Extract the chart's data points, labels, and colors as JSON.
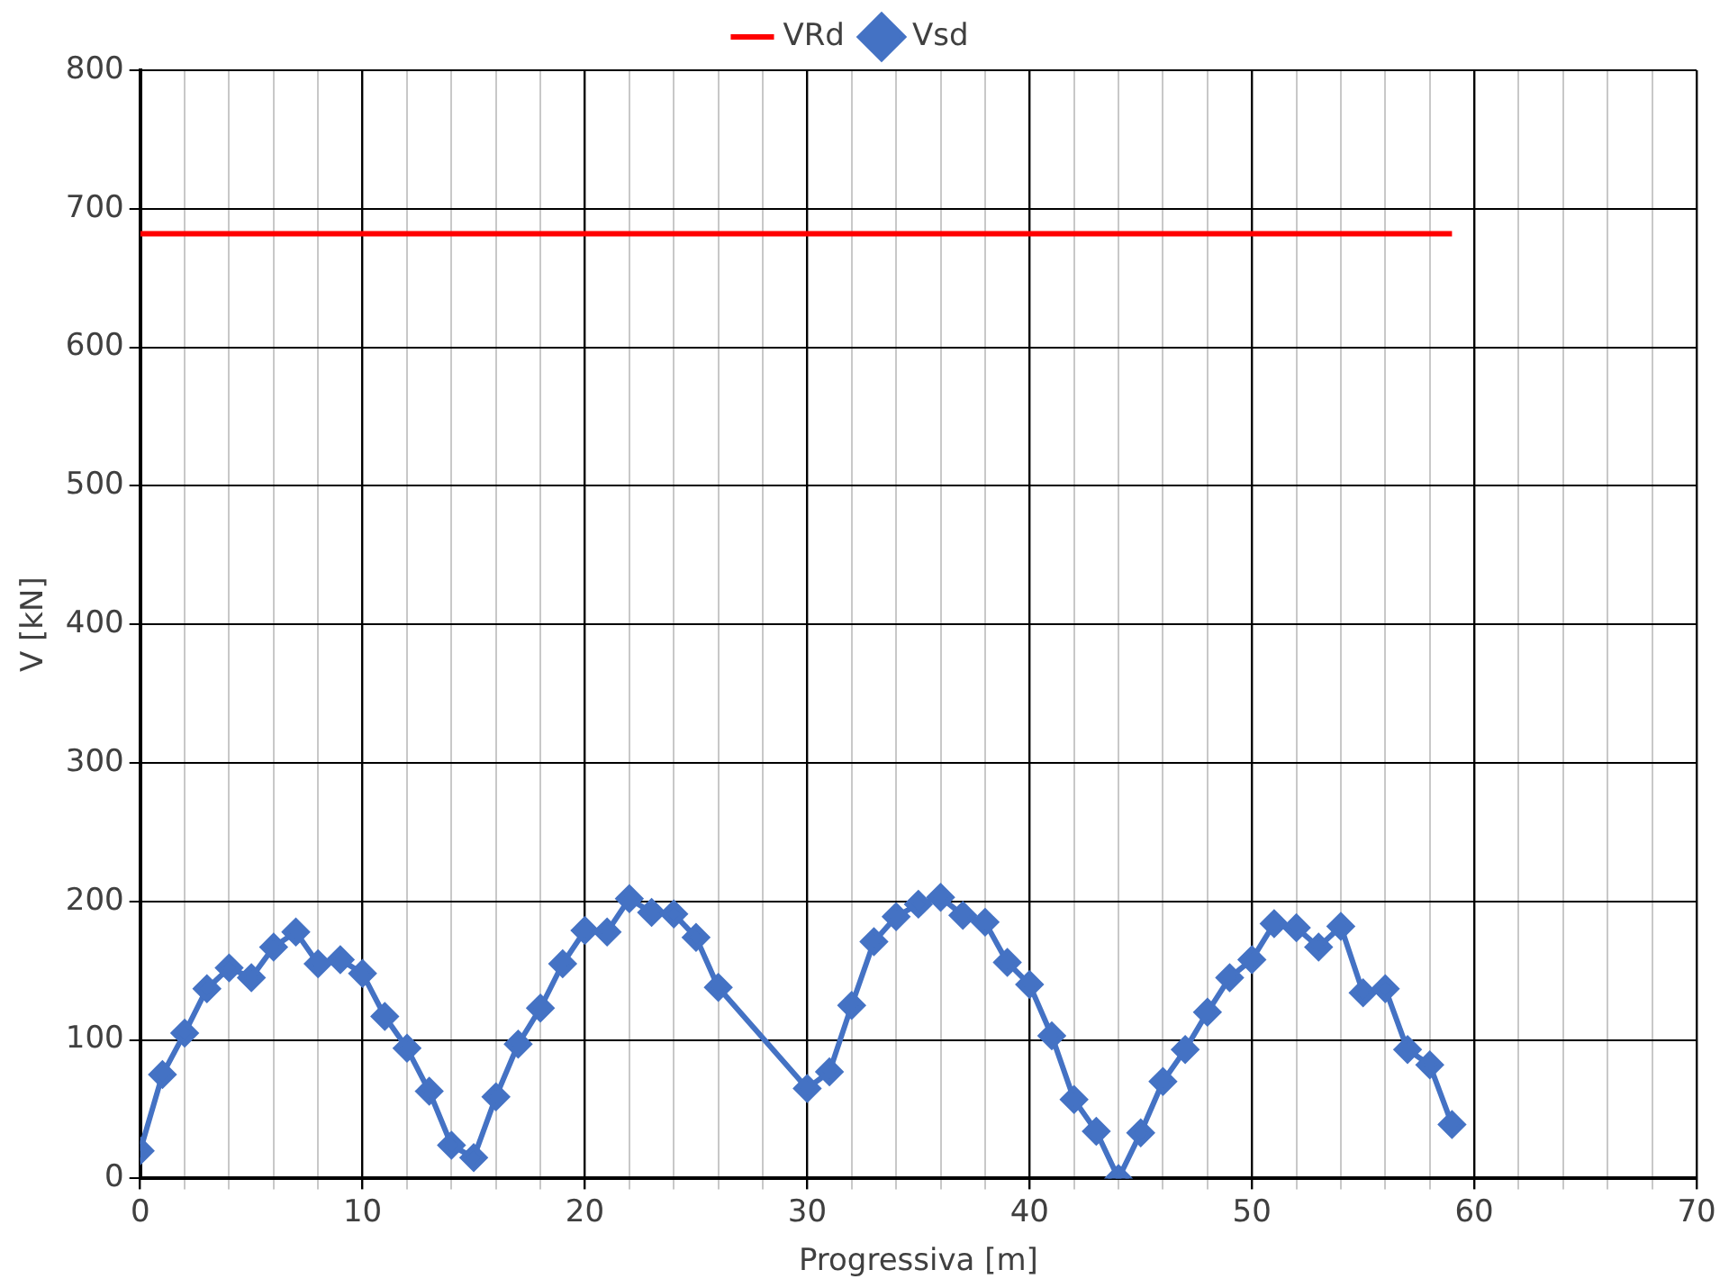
{
  "chart_data": {
    "type": "line",
    "xlabel": "Progressiva [m]",
    "ylabel": "V [kN]",
    "xlim": [
      0,
      70
    ],
    "ylim": [
      0,
      800
    ],
    "xticks": [
      0,
      {
        "value": 2,
        "label": null
      },
      {
        "value": 4,
        "label": null
      },
      {
        "value": 6,
        "label": null
      },
      {
        "value": 8,
        "label": null
      },
      10,
      {
        "value": 12,
        "label": null
      },
      {
        "value": 14,
        "label": null
      },
      {
        "value": 16,
        "label": null
      },
      {
        "value": 18,
        "label": null
      },
      20,
      {
        "value": 22,
        "label": null
      },
      {
        "value": 24,
        "label": null
      },
      {
        "value": 26,
        "label": null
      },
      {
        "value": 28,
        "label": null
      },
      30,
      {
        "value": 32,
        "label": null
      },
      {
        "value": 34,
        "label": null
      },
      {
        "value": 36,
        "label": null
      },
      {
        "value": 38,
        "label": null
      },
      40,
      {
        "value": 42,
        "label": null
      },
      {
        "value": 44,
        "label": null
      },
      {
        "value": 46,
        "label": null
      },
      {
        "value": 48,
        "label": null
      },
      50,
      {
        "value": 52,
        "label": null
      },
      {
        "value": 54,
        "label": null
      },
      {
        "value": 56,
        "label": null
      },
      {
        "value": 58,
        "label": null
      },
      60,
      {
        "value": 62,
        "label": null
      },
      {
        "value": 64,
        "label": null
      },
      {
        "value": 66,
        "label": null
      },
      {
        "value": 68,
        "label": null
      },
      70
    ],
    "yticks": [
      0,
      100,
      200,
      300,
      400,
      500,
      600,
      700,
      800
    ],
    "grid": true,
    "legend": "top",
    "series": [
      {
        "name": "VRd",
        "color": "#ff0000",
        "marker": "none",
        "x": [
          0,
          59
        ],
        "values": [
          682,
          682
        ]
      },
      {
        "name": "Vsd",
        "color": "#4472c4",
        "marker": "diamond",
        "x": [
          0,
          1,
          2,
          3,
          4,
          5,
          6,
          7,
          8,
          9,
          10,
          11,
          12,
          13,
          14,
          15,
          16,
          17,
          18,
          19,
          20,
          21,
          22,
          23,
          24,
          25,
          26,
          30,
          31,
          32,
          33,
          34,
          35,
          36,
          37,
          38,
          39,
          40,
          41,
          42,
          43,
          44,
          45,
          46,
          47,
          48,
          49,
          50,
          51,
          52,
          53,
          54,
          55,
          56,
          57,
          58,
          59
        ],
        "values": [
          20,
          75,
          105,
          137,
          152,
          145,
          167,
          178,
          155,
          158,
          148,
          117,
          94,
          63,
          24,
          15,
          59,
          97,
          123,
          155,
          179,
          178,
          202,
          192,
          191,
          174,
          138,
          65,
          77,
          125,
          171,
          189,
          198,
          203,
          190,
          185,
          156,
          140,
          103,
          57,
          34,
          0,
          33,
          70,
          93,
          120,
          145,
          158,
          184,
          181,
          167,
          182,
          134,
          137,
          93,
          82,
          39
        ]
      }
    ]
  }
}
